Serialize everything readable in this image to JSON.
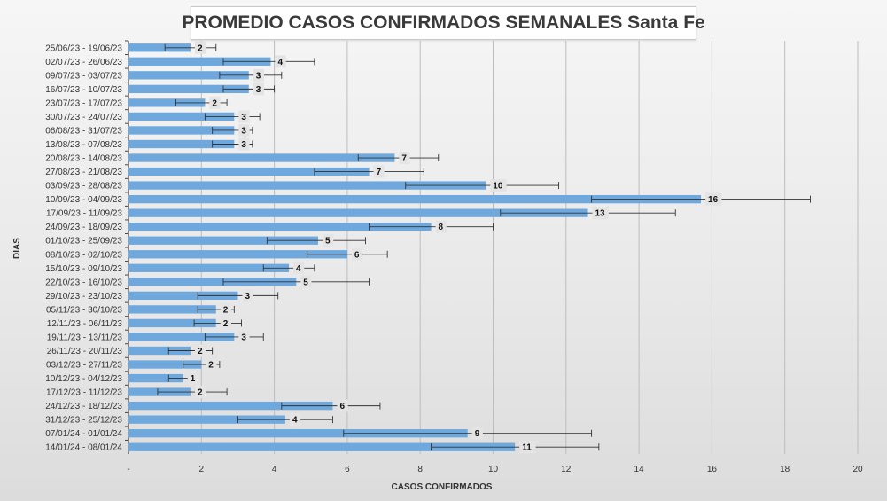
{
  "chart_data": {
    "type": "bar",
    "orientation": "horizontal",
    "title": "PROMEDIO CASOS CONFIRMADOS SEMANALES Santa Fe",
    "xlabel": "CASOS CONFIRMADOS",
    "ylabel": "DIAS",
    "xlim": [
      0,
      20
    ],
    "x_ticks": [
      "-",
      "2",
      "4",
      "6",
      "8",
      "10",
      "12",
      "14",
      "16",
      "18",
      "20"
    ],
    "grid": "vertical major gridlines",
    "legend": "none",
    "bar_color": "#6fa8dc",
    "error_bar_color": "#333333",
    "categories": [
      "25/06/23 - 19/06/23",
      "02/07/23 - 26/06/23",
      "09/07/23 - 03/07/23",
      "16/07/23 - 10/07/23",
      "23/07/23 - 17/07/23",
      "30/07/23 - 24/07/23",
      "06/08/23 - 31/07/23",
      "13/08/23 - 07/08/23",
      "20/08/23 - 14/08/23",
      "27/08/23 - 21/08/23",
      "03/09/23 - 28/08/23",
      "10/09/23 - 04/09/23",
      "17/09/23 - 11/09/23",
      "24/09/23 - 18/09/23",
      "01/10/23 - 25/09/23",
      "08/10/23 - 02/10/23",
      "15/10/23 - 09/10/23",
      "22/10/23 - 16/10/23",
      "29/10/23 - 23/10/23",
      "05/11/23 - 30/10/23",
      "12/11/23 - 06/11/23",
      "19/11/23 - 13/11/23",
      "26/11/23 - 20/11/23",
      "03/12/23 - 27/11/23",
      "10/12/23 - 04/12/23",
      "17/12/23 - 11/12/23",
      "24/12/23 - 18/12/23",
      "31/12/23 - 25/12/23",
      "07/01/24 - 01/01/24",
      "14/01/24 - 08/01/24"
    ],
    "values": [
      1.7,
      3.9,
      3.3,
      3.3,
      2.1,
      2.9,
      2.9,
      2.9,
      7.3,
      6.6,
      9.8,
      15.7,
      12.6,
      8.3,
      5.2,
      6.0,
      4.4,
      4.6,
      3.0,
      2.4,
      2.4,
      2.9,
      1.7,
      2.0,
      1.5,
      1.7,
      5.6,
      4.3,
      9.3,
      10.6
    ],
    "data_labels": [
      "2",
      "4",
      "3",
      "3",
      "2",
      "3",
      "3",
      "3",
      "7",
      "7",
      "10",
      "16",
      "13",
      "8",
      "5",
      "6",
      "4",
      "5",
      "3",
      "2",
      "2",
      "3",
      "2",
      "2",
      "1",
      "2",
      "6",
      "4",
      "9",
      "11"
    ],
    "error_low": [
      1.0,
      2.6,
      2.5,
      2.6,
      1.3,
      2.1,
      2.3,
      2.3,
      6.3,
      5.1,
      7.6,
      12.7,
      10.2,
      6.6,
      3.8,
      4.9,
      3.7,
      2.6,
      1.9,
      1.9,
      1.8,
      2.1,
      1.1,
      1.5,
      1.1,
      0.8,
      4.2,
      3.0,
      5.9,
      8.3
    ],
    "error_high": [
      2.4,
      5.1,
      4.2,
      4.0,
      2.7,
      3.6,
      3.4,
      3.4,
      8.5,
      8.1,
      11.8,
      18.7,
      15.0,
      10.0,
      6.5,
      7.1,
      5.1,
      6.6,
      4.1,
      2.9,
      3.1,
      3.7,
      2.3,
      2.5,
      1.8,
      2.7,
      6.9,
      5.6,
      12.7,
      12.9
    ]
  }
}
